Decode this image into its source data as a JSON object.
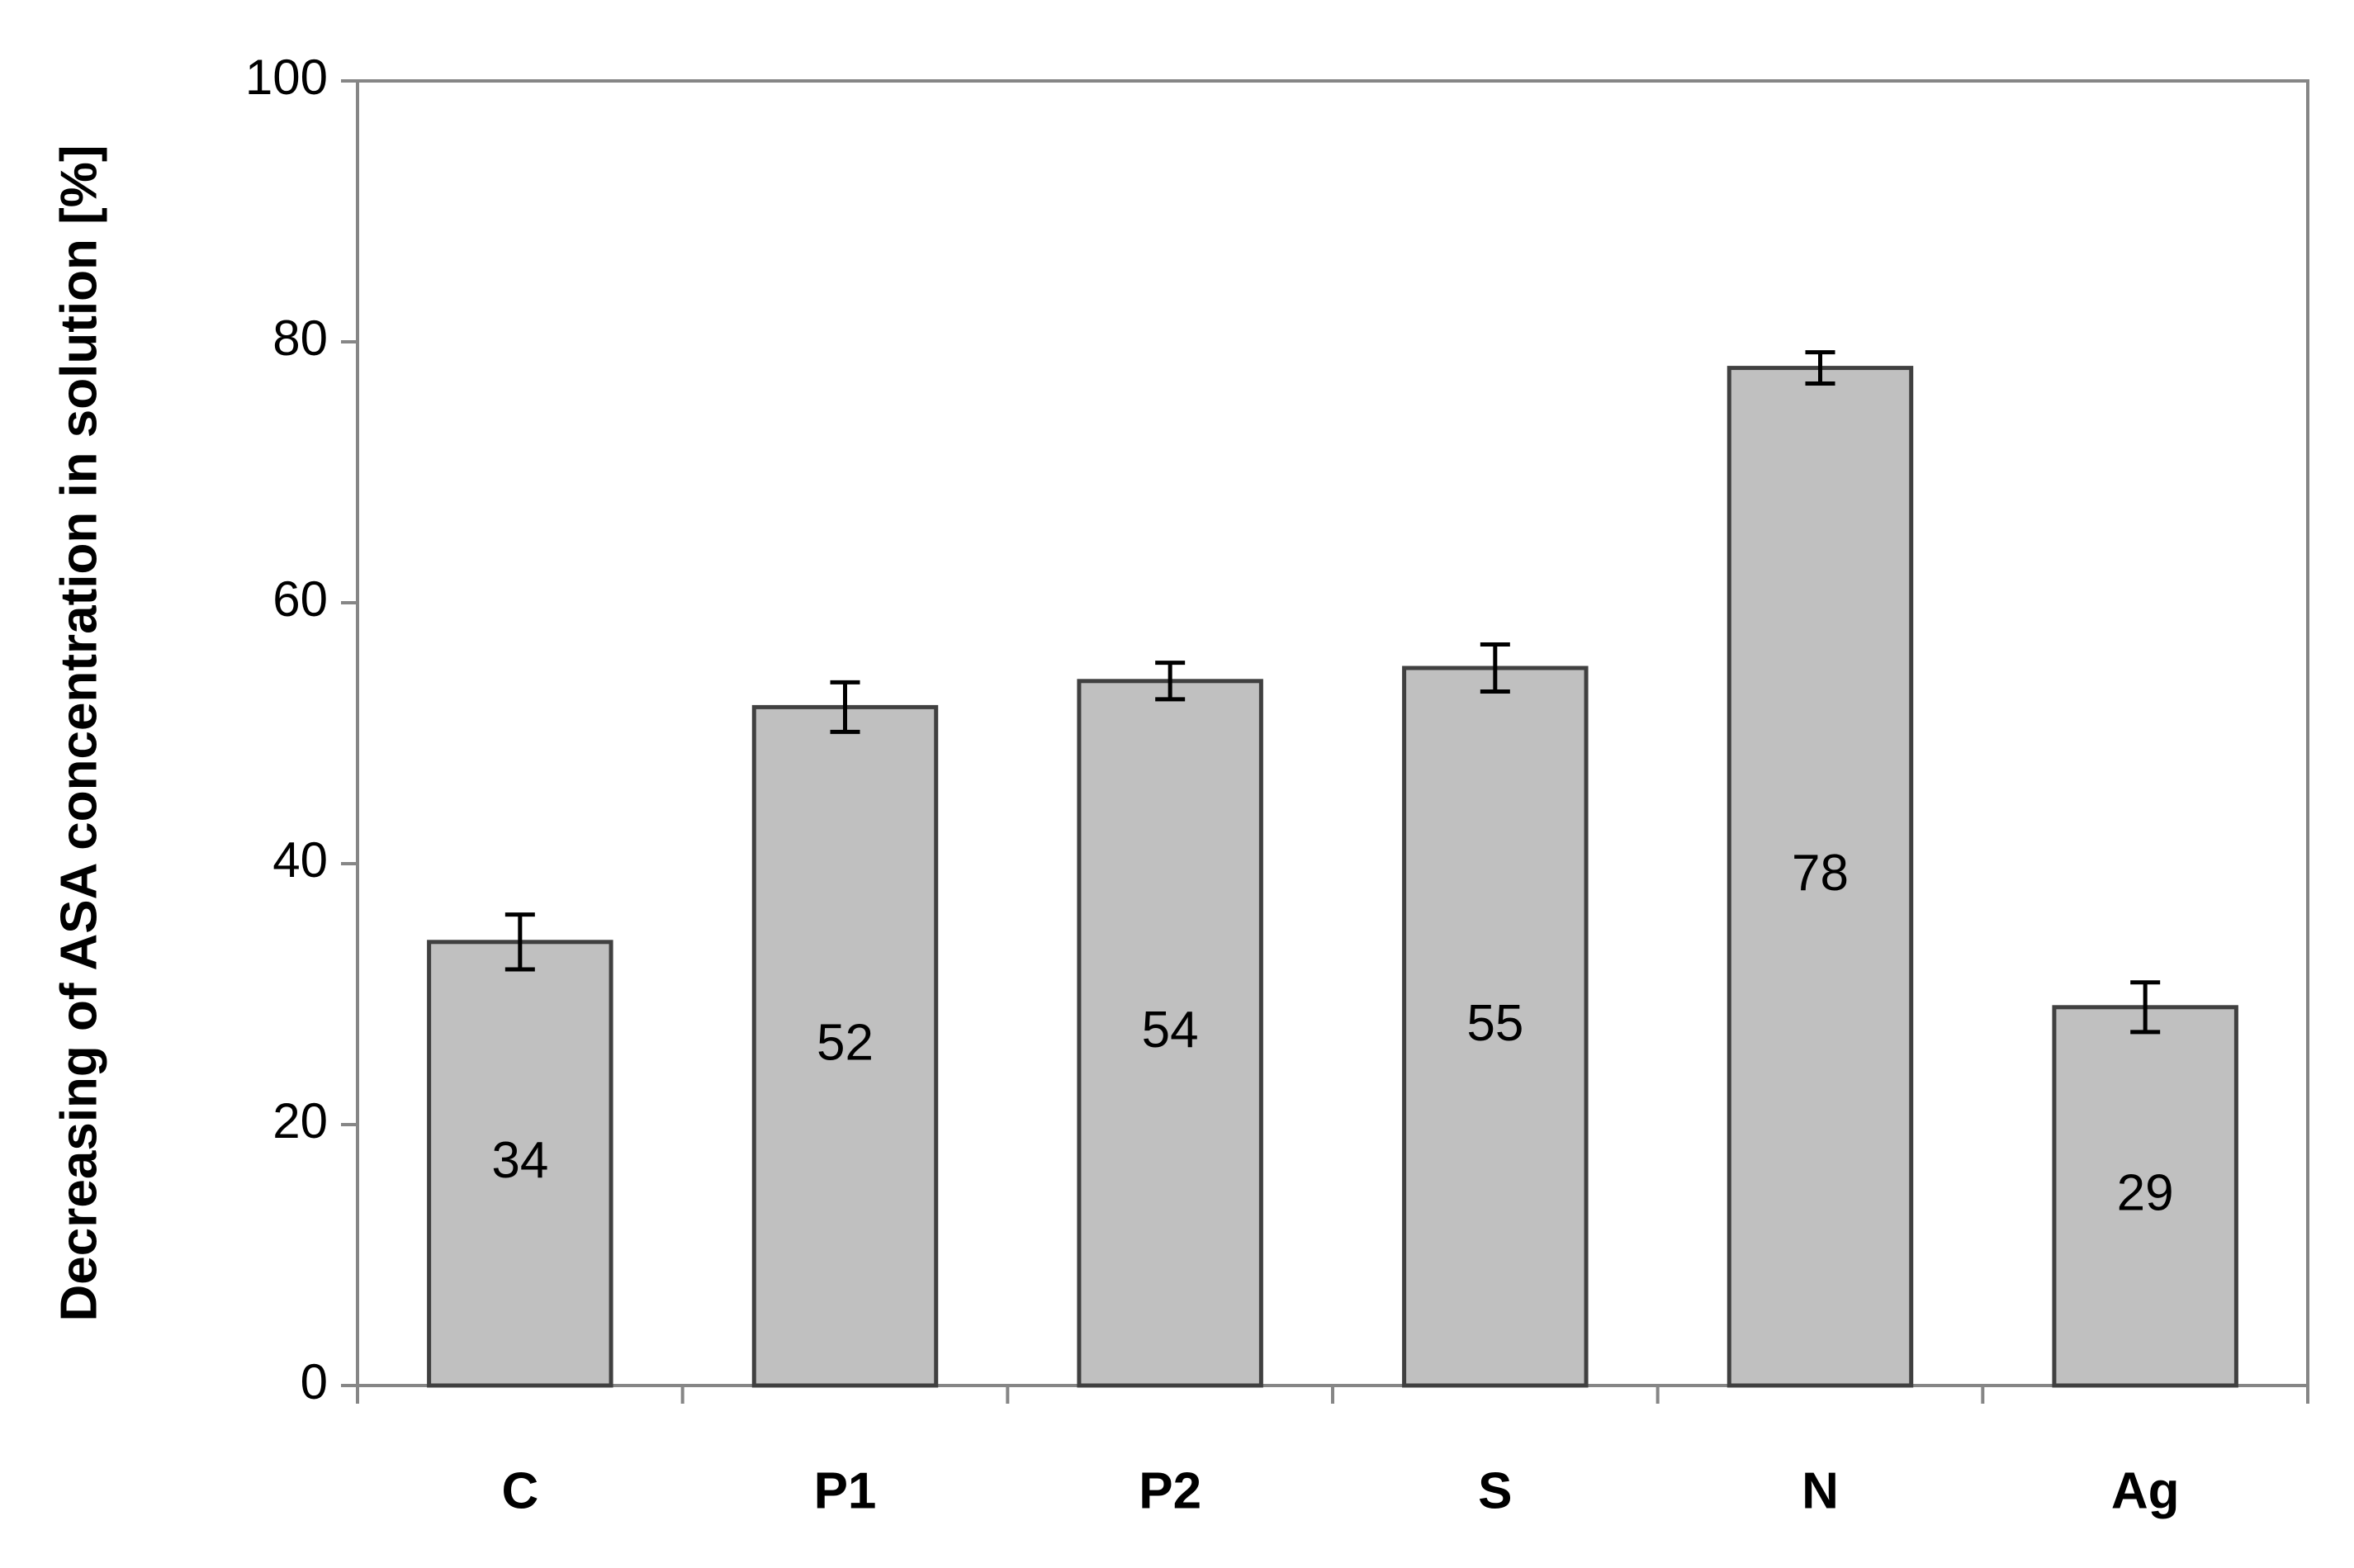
{
  "chart_data": {
    "type": "bar",
    "y_label": "Decreasing of ASA concentration in solution [%]",
    "categories": [
      "C",
      "P1",
      "P2",
      "S",
      "N",
      "Ag"
    ],
    "values": [
      34,
      52,
      54,
      55,
      78,
      29
    ],
    "errors": [
      2.1,
      1.9,
      1.4,
      1.8,
      1.2,
      1.9
    ],
    "color": "#c0c0c0",
    "ylim": [
      0,
      100
    ],
    "yticks": [
      0,
      20,
      40,
      60,
      80,
      100
    ],
    "grid": false
  }
}
